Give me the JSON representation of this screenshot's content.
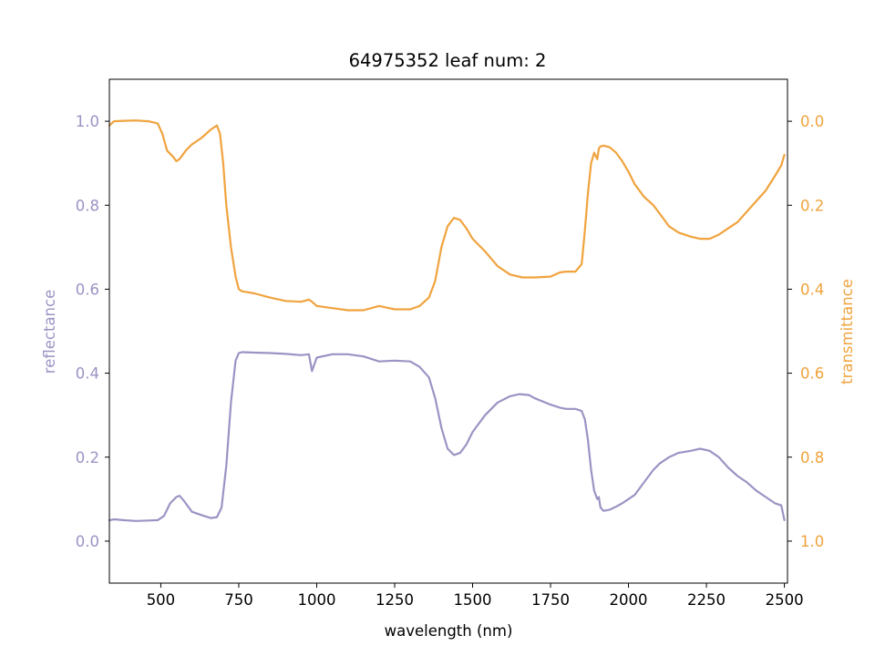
{
  "chart_data": {
    "type": "line",
    "title": "64975352 leaf num: 2",
    "xlabel": "wavelength (nm)",
    "ylabel": "reflectance",
    "y2label": "transmittance",
    "xlim": [
      335,
      2510
    ],
    "ylim": [
      -0.1,
      1.1
    ],
    "y2lim": [
      1.1,
      -0.1
    ],
    "y2_inverted": true,
    "xticks": [
      500,
      750,
      1000,
      1250,
      1500,
      1750,
      2000,
      2250,
      2500
    ],
    "yticks": [
      0.0,
      0.2,
      0.4,
      0.6,
      0.8,
      1.0
    ],
    "y2ticks": [
      0.0,
      0.2,
      0.4,
      0.6,
      0.8,
      1.0
    ],
    "grid": false,
    "legend": "none",
    "colors": {
      "reflectance": "#9a94c4",
      "transmittance": "#f0a33e",
      "axes": "#000000"
    },
    "series": [
      {
        "axis": "left",
        "color": "#9a94c4",
        "x": [
          335,
          350,
          380,
          420,
          460,
          490,
          510,
          530,
          550,
          560,
          575,
          600,
          630,
          660,
          680,
          695,
          710,
          725,
          740,
          750,
          760,
          800,
          850,
          900,
          950,
          975,
          985,
          1000,
          1050,
          1100,
          1150,
          1200,
          1250,
          1300,
          1330,
          1360,
          1380,
          1400,
          1420,
          1440,
          1460,
          1480,
          1500,
          1540,
          1580,
          1620,
          1650,
          1680,
          1700,
          1750,
          1780,
          1800,
          1830,
          1850,
          1860,
          1870,
          1880,
          1890,
          1900,
          1905,
          1910,
          1920,
          1940,
          1960,
          1980,
          2000,
          2020,
          2050,
          2080,
          2100,
          2130,
          2160,
          2200,
          2230,
          2260,
          2290,
          2320,
          2350,
          2380,
          2410,
          2440,
          2470,
          2490,
          2500
        ],
        "y": [
          0.05,
          0.052,
          0.05,
          0.048,
          0.049,
          0.05,
          0.06,
          0.09,
          0.105,
          0.108,
          0.095,
          0.07,
          0.062,
          0.055,
          0.057,
          0.08,
          0.18,
          0.33,
          0.43,
          0.448,
          0.45,
          0.449,
          0.448,
          0.446,
          0.443,
          0.445,
          0.405,
          0.437,
          0.445,
          0.445,
          0.44,
          0.428,
          0.43,
          0.428,
          0.415,
          0.39,
          0.34,
          0.27,
          0.22,
          0.205,
          0.21,
          0.23,
          0.26,
          0.3,
          0.33,
          0.345,
          0.35,
          0.348,
          0.34,
          0.325,
          0.318,
          0.315,
          0.315,
          0.31,
          0.29,
          0.24,
          0.17,
          0.12,
          0.1,
          0.105,
          0.08,
          0.072,
          0.075,
          0.082,
          0.09,
          0.1,
          0.11,
          0.14,
          0.17,
          0.185,
          0.2,
          0.21,
          0.215,
          0.22,
          0.215,
          0.2,
          0.175,
          0.155,
          0.14,
          0.12,
          0.105,
          0.09,
          0.085,
          0.05
        ]
      },
      {
        "axis": "right",
        "color": "#f0a33e",
        "x": [
          335,
          350,
          380,
          420,
          460,
          490,
          505,
          520,
          540,
          550,
          560,
          580,
          600,
          630,
          660,
          680,
          690,
          700,
          710,
          725,
          740,
          750,
          760,
          800,
          850,
          900,
          950,
          975,
          985,
          1000,
          1050,
          1100,
          1150,
          1200,
          1250,
          1300,
          1330,
          1360,
          1380,
          1400,
          1420,
          1440,
          1460,
          1480,
          1500,
          1540,
          1580,
          1620,
          1660,
          1700,
          1750,
          1780,
          1800,
          1830,
          1850,
          1860,
          1870,
          1880,
          1890,
          1900,
          1905,
          1910,
          1920,
          1940,
          1960,
          1980,
          2000,
          2020,
          2050,
          2080,
          2100,
          2130,
          2160,
          2200,
          2230,
          2260,
          2290,
          2320,
          2350,
          2380,
          2410,
          2440,
          2470,
          2490,
          2500
        ],
        "y": [
          0.01,
          0.0,
          -0.001,
          -0.002,
          0.0,
          0.005,
          0.03,
          0.07,
          0.085,
          0.095,
          0.09,
          0.07,
          0.055,
          0.04,
          0.02,
          0.01,
          0.03,
          0.1,
          0.2,
          0.3,
          0.37,
          0.4,
          0.405,
          0.41,
          0.42,
          0.428,
          0.43,
          0.425,
          0.43,
          0.44,
          0.445,
          0.45,
          0.45,
          0.44,
          0.448,
          0.448,
          0.44,
          0.42,
          0.38,
          0.3,
          0.25,
          0.23,
          0.235,
          0.255,
          0.28,
          0.31,
          0.345,
          0.365,
          0.372,
          0.372,
          0.37,
          0.36,
          0.358,
          0.358,
          0.34,
          0.26,
          0.17,
          0.1,
          0.075,
          0.09,
          0.065,
          0.06,
          0.058,
          0.062,
          0.075,
          0.095,
          0.12,
          0.15,
          0.18,
          0.2,
          0.22,
          0.25,
          0.265,
          0.275,
          0.28,
          0.28,
          0.27,
          0.255,
          0.24,
          0.215,
          0.19,
          0.165,
          0.13,
          0.105,
          0.08
        ]
      }
    ]
  }
}
